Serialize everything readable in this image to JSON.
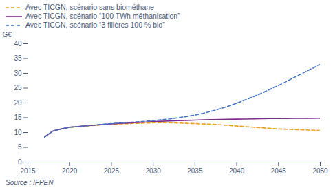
{
  "chart_data": {
    "type": "line",
    "ylabel": "G€",
    "source": "Source : IFPEN",
    "xlim": [
      2015,
      2050
    ],
    "ylim": [
      0,
      40
    ],
    "xticks": [
      2015,
      2020,
      2025,
      2030,
      2035,
      2040,
      2045,
      2050
    ],
    "yticks": [
      0,
      5,
      10,
      15,
      20,
      25,
      30,
      35,
      40
    ],
    "grid": false,
    "legend": "upper left",
    "x": [
      2017,
      2018,
      2019,
      2020,
      2021,
      2022,
      2023,
      2024,
      2025,
      2026,
      2027,
      2028,
      2029,
      2030,
      2031,
      2032,
      2033,
      2034,
      2035,
      2036,
      2037,
      2038,
      2039,
      2040,
      2041,
      2042,
      2043,
      2044,
      2045,
      2046,
      2047,
      2048,
      2049,
      2050
    ],
    "series": [
      {
        "name": "Avec TICGN, scénario sans biométhane",
        "color": "#E8A020",
        "line_style": "dashed",
        "values": [
          8.5,
          10.5,
          11.2,
          11.8,
          12.0,
          12.2,
          12.4,
          12.6,
          12.8,
          12.9,
          13.0,
          13.1,
          13.2,
          13.3,
          13.3,
          13.3,
          13.2,
          13.1,
          13.0,
          12.9,
          12.8,
          12.6,
          12.4,
          12.2,
          12.0,
          11.8,
          11.6,
          11.4,
          11.2,
          11.1,
          11.0,
          10.9,
          10.8,
          10.7
        ]
      },
      {
        "name": "Avec TICGN, scénario “100 TWh méthanisation”",
        "color": "#7B2D8B",
        "line_style": "solid",
        "values": [
          8.5,
          10.5,
          11.2,
          11.8,
          12.0,
          12.3,
          12.5,
          12.7,
          12.9,
          13.1,
          13.2,
          13.4,
          13.5,
          13.7,
          13.8,
          13.9,
          14.0,
          14.1,
          14.2,
          14.3,
          14.35,
          14.4,
          14.45,
          14.5,
          14.55,
          14.6,
          14.65,
          14.7,
          14.72,
          14.74,
          14.76,
          14.78,
          14.8,
          14.82
        ]
      },
      {
        "name": "Avec TICGN, scénario “3 filières 100 % bio”",
        "color": "#4472C4",
        "line_style": "dashed",
        "values": [
          8.5,
          10.5,
          11.2,
          11.8,
          12.0,
          12.3,
          12.5,
          12.8,
          13.0,
          13.2,
          13.4,
          13.6,
          13.8,
          14.0,
          14.3,
          14.6,
          15.0,
          15.4,
          15.9,
          16.5,
          17.2,
          18.0,
          18.9,
          19.9,
          21.0,
          22.1,
          23.3,
          24.6,
          25.9,
          27.3,
          28.8,
          30.2,
          31.6,
          33.0
        ]
      }
    ]
  }
}
